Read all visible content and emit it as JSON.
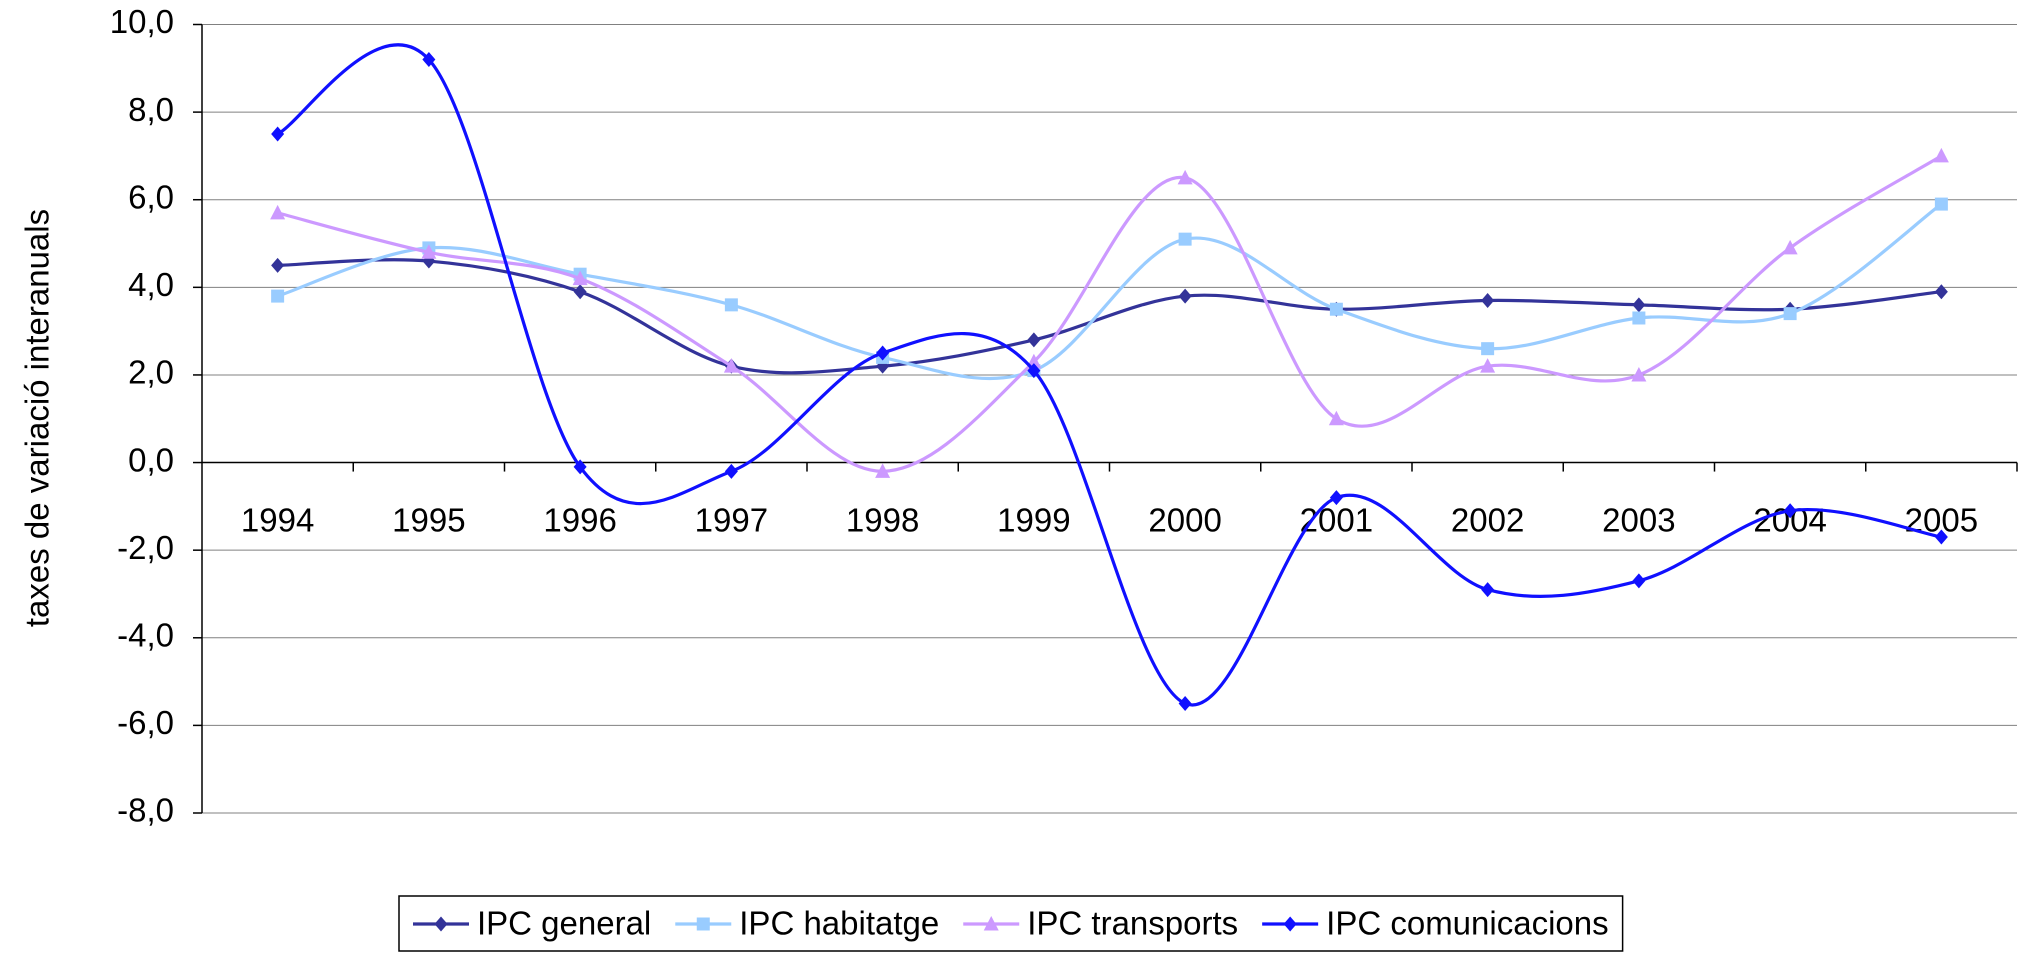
{
  "chart_data": {
    "type": "line",
    "ylabel": "taxes de variació interanuals",
    "categories": [
      "1994",
      "1995",
      "1996",
      "1997",
      "1998",
      "1999",
      "2000",
      "2001",
      "2002",
      "2003",
      "2004",
      "2005"
    ],
    "series": [
      {
        "name": "IPC general",
        "color": "#333399",
        "marker": "diamond",
        "values": [
          4.5,
          4.6,
          3.9,
          2.2,
          2.2,
          2.8,
          3.8,
          3.5,
          3.7,
          3.6,
          3.5,
          3.9
        ]
      },
      {
        "name": "IPC habitatge",
        "color": "#99ccff",
        "marker": "square",
        "values": [
          3.8,
          4.9,
          4.3,
          3.6,
          2.4,
          2.1,
          5.1,
          3.5,
          2.6,
          3.3,
          3.4,
          5.9
        ]
      },
      {
        "name": "IPC transports",
        "color": "#cc99ff",
        "marker": "triangle",
        "values": [
          5.7,
          4.8,
          4.2,
          2.2,
          -0.2,
          2.3,
          6.5,
          1.0,
          2.2,
          2.0,
          4.9,
          7.0
        ]
      },
      {
        "name": "IPC comunicacions",
        "color": "#1010ff",
        "marker": "diamond",
        "values": [
          7.5,
          9.2,
          -0.1,
          -0.2,
          2.5,
          2.1,
          -5.5,
          -0.8,
          -2.9,
          -2.7,
          -1.1,
          -1.7
        ]
      }
    ],
    "ylim": [
      -8,
      10
    ],
    "yticks": [
      {
        "value": -8,
        "label": "-8,0"
      },
      {
        "value": -6,
        "label": "-6,0"
      },
      {
        "value": -4,
        "label": "-4,0"
      },
      {
        "value": -2,
        "label": "-2,0"
      },
      {
        "value": 0,
        "label": "0,0"
      },
      {
        "value": 2,
        "label": "2,0"
      },
      {
        "value": 4,
        "label": "4,0"
      },
      {
        "value": 6,
        "label": "6,0"
      },
      {
        "value": 8,
        "label": "8,0"
      },
      {
        "value": 10,
        "label": "10,0"
      }
    ],
    "grid": true,
    "smooth": true,
    "legend": "bottom"
  }
}
